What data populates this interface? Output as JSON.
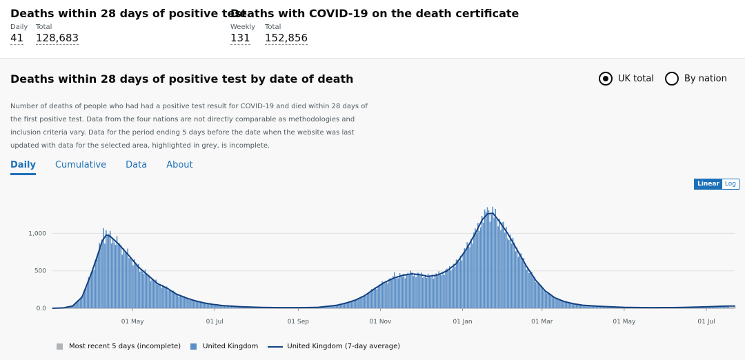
{
  "header": {
    "card1": {
      "title": "Deaths within 28 days of positive test",
      "metrics": [
        {
          "label": "Daily",
          "value": "41"
        },
        {
          "label": "Total",
          "value": "128,683"
        }
      ]
    },
    "card2": {
      "title": "Deaths with COVID-19 on the death certificate",
      "metrics": [
        {
          "label": "Weekly",
          "value": "131"
        },
        {
          "label": "Total",
          "value": "152,856"
        }
      ]
    }
  },
  "panel": {
    "title": "Deaths within 28 days of positive test by date of death",
    "radios": [
      {
        "label": "UK total",
        "selected": true
      },
      {
        "label": "By nation",
        "selected": false
      }
    ],
    "description": "Number of deaths of people who had had a positive test result for COVID-19 and died within 28 days of the first positive test. Data from the four nations are not directly comparable as methodologies and inclusion criteria vary. Data for the period ending 5 days before the date when the website was last updated with data for the selected area, highlighted in grey, is incomplete.",
    "tabs": [
      "Daily",
      "Cumulative",
      "Data",
      "About"
    ],
    "active_tab": "Daily",
    "scale_buttons": {
      "linear": "Linear",
      "log": "Log",
      "selected": "Linear"
    }
  },
  "colors": {
    "bar": "#5b8fc7",
    "avg_line": "#12407f",
    "incomplete": "#b1b4b6",
    "accent": "#1d70b8"
  },
  "chart_data": {
    "type": "bar",
    "title": "",
    "xlabel": "",
    "ylabel": "",
    "ylim": [
      0,
      1400
    ],
    "y_ticks": [
      "0.0",
      "500",
      "1,000"
    ],
    "y_tick_values": [
      0,
      500,
      1000
    ],
    "x_ticks": [
      "01 May",
      "01 Jul",
      "01 Sep",
      "01 Nov",
      "01 Jan",
      "01 Mar",
      "01 May",
      "01 Jul"
    ],
    "x_range": [
      "2020-03-02",
      "2021-07-22"
    ],
    "x_tick_dates": [
      "2020-05-01",
      "2020-07-01",
      "2020-09-01",
      "2020-11-01",
      "2021-01-01",
      "2021-03-01",
      "2021-05-01",
      "2021-07-01"
    ],
    "daily_7day_average_anchors": [
      [
        "2020-03-02",
        0
      ],
      [
        "2020-03-10",
        5
      ],
      [
        "2020-03-17",
        30
      ],
      [
        "2020-03-24",
        150
      ],
      [
        "2020-03-31",
        470
      ],
      [
        "2020-04-04",
        680
      ],
      [
        "2020-04-08",
        900
      ],
      [
        "2020-04-11",
        980
      ],
      [
        "2020-04-14",
        960
      ],
      [
        "2020-04-20",
        860
      ],
      [
        "2020-04-28",
        700
      ],
      [
        "2020-05-05",
        550
      ],
      [
        "2020-05-12",
        440
      ],
      [
        "2020-05-19",
        330
      ],
      [
        "2020-05-26",
        270
      ],
      [
        "2020-06-02",
        190
      ],
      [
        "2020-06-09",
        140
      ],
      [
        "2020-06-16",
        100
      ],
      [
        "2020-06-23",
        70
      ],
      [
        "2020-06-30",
        50
      ],
      [
        "2020-07-07",
        35
      ],
      [
        "2020-07-21",
        20
      ],
      [
        "2020-08-04",
        12
      ],
      [
        "2020-08-18",
        8
      ],
      [
        "2020-09-01",
        8
      ],
      [
        "2020-09-15",
        12
      ],
      [
        "2020-09-29",
        40
      ],
      [
        "2020-10-06",
        70
      ],
      [
        "2020-10-13",
        110
      ],
      [
        "2020-10-20",
        170
      ],
      [
        "2020-10-27",
        260
      ],
      [
        "2020-11-03",
        340
      ],
      [
        "2020-11-10",
        400
      ],
      [
        "2020-11-17",
        440
      ],
      [
        "2020-11-24",
        460
      ],
      [
        "2020-12-01",
        445
      ],
      [
        "2020-12-06",
        425
      ],
      [
        "2020-12-13",
        445
      ],
      [
        "2020-12-20",
        500
      ],
      [
        "2020-12-27",
        600
      ],
      [
        "2021-01-03",
        780
      ],
      [
        "2021-01-10",
        1000
      ],
      [
        "2021-01-15",
        1180
      ],
      [
        "2021-01-19",
        1260
      ],
      [
        "2021-01-23",
        1270
      ],
      [
        "2021-01-27",
        1180
      ],
      [
        "2021-02-03",
        1000
      ],
      [
        "2021-02-10",
        780
      ],
      [
        "2021-02-17",
        560
      ],
      [
        "2021-02-24",
        370
      ],
      [
        "2021-03-03",
        230
      ],
      [
        "2021-03-10",
        140
      ],
      [
        "2021-03-17",
        90
      ],
      [
        "2021-03-24",
        60
      ],
      [
        "2021-03-31",
        40
      ],
      [
        "2021-04-14",
        25
      ],
      [
        "2021-05-01",
        12
      ],
      [
        "2021-05-20",
        8
      ],
      [
        "2021-06-10",
        10
      ],
      [
        "2021-07-01",
        20
      ],
      [
        "2021-07-15",
        30
      ]
    ],
    "daily_spikes": [
      [
        "2020-04-09",
        1070
      ],
      [
        "2020-11-11",
        480
      ],
      [
        "2020-11-24",
        480
      ],
      [
        "2021-01-19",
        1350
      ]
    ],
    "incomplete_days": 5,
    "legend": [
      "Most recent 5 days (incomplete)",
      "United Kingdom",
      "United Kingdom (7-day average)"
    ],
    "legend_position": "bottom-left"
  }
}
